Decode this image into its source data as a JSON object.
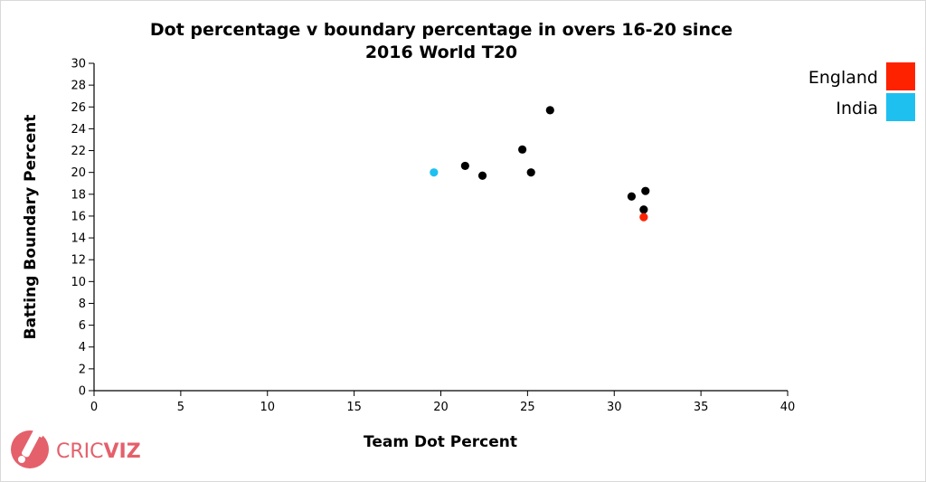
{
  "chart_data": {
    "type": "scatter",
    "title_lines": [
      "Dot percentage v boundary percentage in overs 16-20 since",
      "2016 World T20"
    ],
    "xlabel": "Team Dot Percent",
    "ylabel": "Batting Boundary Percent",
    "xlim": [
      0,
      40
    ],
    "ylim": [
      0,
      30
    ],
    "x_ticks": [
      "0",
      "5",
      "10",
      "15",
      "20",
      "25",
      "30",
      "35",
      "40"
    ],
    "y_ticks": [
      "0",
      "2",
      "4",
      "6",
      "8",
      "10",
      "12",
      "14",
      "16",
      "18",
      "20",
      "22",
      "24",
      "26",
      "28",
      "30"
    ],
    "legend_position": "top-right",
    "legend": [
      {
        "name": "England",
        "color": "#ff2200"
      },
      {
        "name": "India",
        "color": "#1ec0f0"
      }
    ],
    "points": [
      {
        "x": 19.6,
        "y": 20.0,
        "color": "#1ec0f0"
      },
      {
        "x": 21.4,
        "y": 20.6,
        "color": "#000000"
      },
      {
        "x": 22.4,
        "y": 19.7,
        "color": "#000000"
      },
      {
        "x": 24.7,
        "y": 22.1,
        "color": "#000000"
      },
      {
        "x": 25.2,
        "y": 20.0,
        "color": "#000000"
      },
      {
        "x": 26.3,
        "y": 25.7,
        "color": "#000000"
      },
      {
        "x": 31.0,
        "y": 17.8,
        "color": "#000000"
      },
      {
        "x": 31.7,
        "y": 16.6,
        "color": "#000000"
      },
      {
        "x": 31.8,
        "y": 18.3,
        "color": "#000000"
      },
      {
        "x": 31.7,
        "y": 15.9,
        "color": "#ff2200"
      }
    ]
  },
  "logo": {
    "brand_cric": "CRIC",
    "brand_viz": "VIZ",
    "brand_color": "#e4606b",
    "icon": "cricket-bat-ball-icon"
  }
}
